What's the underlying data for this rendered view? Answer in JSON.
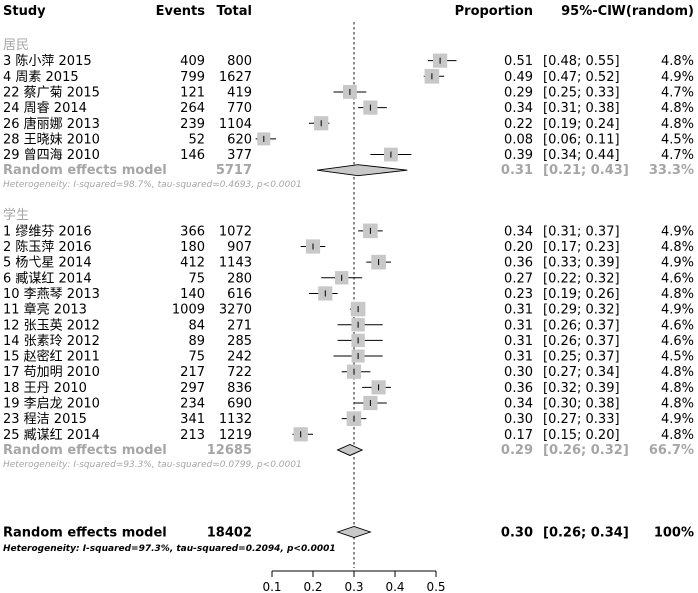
{
  "headers": {
    "study": "Study",
    "events": "Events",
    "total": "Total",
    "proportion": "Proportion",
    "ci": "95%-CI",
    "weight": "W(random)"
  },
  "chart_data": {
    "type": "forest",
    "xlim": [
      0.1,
      0.5
    ],
    "ticks": [
      "0.1",
      "0.2",
      "0.3",
      "0.4",
      "0.5"
    ],
    "reference_line": 0.3,
    "groups": [
      {
        "label": "居民",
        "studies": [
          {
            "study": "3 陈小萍 2015",
            "events": "409",
            "total": "800",
            "proportion": "0.51",
            "ci_text": "[0.48; 0.55]",
            "weight": "4.8%",
            "est": 0.51,
            "lo": 0.48,
            "hi": 0.55,
            "w": 4.8
          },
          {
            "study": "4 周素 2015",
            "events": "799",
            "total": "1627",
            "proportion": "0.49",
            "ci_text": "[0.47; 0.52]",
            "weight": "4.9%",
            "est": 0.49,
            "lo": 0.47,
            "hi": 0.52,
            "w": 4.9
          },
          {
            "study": "22 蔡广菊 2015",
            "events": "121",
            "total": "419",
            "proportion": "0.29",
            "ci_text": "[0.25; 0.33]",
            "weight": "4.7%",
            "est": 0.29,
            "lo": 0.25,
            "hi": 0.33,
            "w": 4.7
          },
          {
            "study": "24 周睿 2014",
            "events": "264",
            "total": "770",
            "proportion": "0.34",
            "ci_text": "[0.31; 0.38]",
            "weight": "4.8%",
            "est": 0.34,
            "lo": 0.31,
            "hi": 0.38,
            "w": 4.8
          },
          {
            "study": "26 唐丽娜 2013",
            "events": "239",
            "total": "1104",
            "proportion": "0.22",
            "ci_text": "[0.19; 0.24]",
            "weight": "4.8%",
            "est": 0.22,
            "lo": 0.19,
            "hi": 0.24,
            "w": 4.8
          },
          {
            "study": "28 王晓妹 2010",
            "events": "52",
            "total": "620",
            "proportion": "0.08",
            "ci_text": "[0.06; 0.11]",
            "weight": "4.5%",
            "est": 0.08,
            "lo": 0.06,
            "hi": 0.11,
            "w": 4.5
          },
          {
            "study": "29 曾四海 2010",
            "events": "146",
            "total": "377",
            "proportion": "0.39",
            "ci_text": "[0.34; 0.44]",
            "weight": "4.7%",
            "est": 0.39,
            "lo": 0.34,
            "hi": 0.44,
            "w": 4.7
          }
        ],
        "summary": {
          "label": "Random effects model",
          "total": "5717",
          "proportion": "0.31",
          "ci_text": "[0.21; 0.43]",
          "weight": "33.3%",
          "est": 0.31,
          "lo": 0.21,
          "hi": 0.43
        },
        "heterogeneity": "Heterogeneity: I-squared=98.7%, tau-squared=0.4693, p<0.0001"
      },
      {
        "label": "学生",
        "studies": [
          {
            "study": "1 缪维芬 2016",
            "events": "366",
            "total": "1072",
            "proportion": "0.34",
            "ci_text": "[0.31; 0.37]",
            "weight": "4.9%",
            "est": 0.34,
            "lo": 0.31,
            "hi": 0.37,
            "w": 4.9
          },
          {
            "study": "2 陈玉萍 2016",
            "events": "180",
            "total": "907",
            "proportion": "0.20",
            "ci_text": "[0.17; 0.23]",
            "weight": "4.8%",
            "est": 0.2,
            "lo": 0.17,
            "hi": 0.23,
            "w": 4.8
          },
          {
            "study": "5 杨弋星 2014",
            "events": "412",
            "total": "1143",
            "proportion": "0.36",
            "ci_text": "[0.33; 0.39]",
            "weight": "4.9%",
            "est": 0.36,
            "lo": 0.33,
            "hi": 0.39,
            "w": 4.9
          },
          {
            "study": "6 臧谋红 2014",
            "events": "75",
            "total": "280",
            "proportion": "0.27",
            "ci_text": "[0.22; 0.32]",
            "weight": "4.6%",
            "est": 0.27,
            "lo": 0.22,
            "hi": 0.32,
            "w": 4.6
          },
          {
            "study": "10 李燕琴 2013",
            "events": "140",
            "total": "616",
            "proportion": "0.23",
            "ci_text": "[0.19; 0.26]",
            "weight": "4.8%",
            "est": 0.23,
            "lo": 0.19,
            "hi": 0.26,
            "w": 4.8
          },
          {
            "study": "11 章亮 2013",
            "events": "1009",
            "total": "3270",
            "proportion": "0.31",
            "ci_text": "[0.29; 0.32]",
            "weight": "4.9%",
            "est": 0.31,
            "lo": 0.29,
            "hi": 0.32,
            "w": 4.9
          },
          {
            "study": "12 张玉英 2012",
            "events": "84",
            "total": "271",
            "proportion": "0.31",
            "ci_text": "[0.26; 0.37]",
            "weight": "4.6%",
            "est": 0.31,
            "lo": 0.26,
            "hi": 0.37,
            "w": 4.6
          },
          {
            "study": "14 张素玲 2012",
            "events": "89",
            "total": "285",
            "proportion": "0.31",
            "ci_text": "[0.26; 0.37]",
            "weight": "4.6%",
            "est": 0.31,
            "lo": 0.26,
            "hi": 0.37,
            "w": 4.6
          },
          {
            "study": "15 赵密红 2011",
            "events": "75",
            "total": "242",
            "proportion": "0.31",
            "ci_text": "[0.25; 0.37]",
            "weight": "4.5%",
            "est": 0.31,
            "lo": 0.25,
            "hi": 0.37,
            "w": 4.5
          },
          {
            "study": "17 苟加明 2010",
            "events": "217",
            "total": "722",
            "proportion": "0.30",
            "ci_text": "[0.27; 0.34]",
            "weight": "4.8%",
            "est": 0.3,
            "lo": 0.27,
            "hi": 0.34,
            "w": 4.8
          },
          {
            "study": "18 王丹 2010",
            "events": "297",
            "total": "836",
            "proportion": "0.36",
            "ci_text": "[0.32; 0.39]",
            "weight": "4.8%",
            "est": 0.36,
            "lo": 0.32,
            "hi": 0.39,
            "w": 4.8
          },
          {
            "study": "19 李启龙 2010",
            "events": "234",
            "total": "690",
            "proportion": "0.34",
            "ci_text": "[0.30; 0.38]",
            "weight": "4.8%",
            "est": 0.34,
            "lo": 0.3,
            "hi": 0.38,
            "w": 4.8
          },
          {
            "study": "23 程洁 2015",
            "events": "341",
            "total": "1132",
            "proportion": "0.30",
            "ci_text": "[0.27; 0.33]",
            "weight": "4.9%",
            "est": 0.3,
            "lo": 0.27,
            "hi": 0.33,
            "w": 4.9
          },
          {
            "study": "25 臧谋红 2014",
            "events": "213",
            "total": "1219",
            "proportion": "0.17",
            "ci_text": "[0.15; 0.20]",
            "weight": "4.8%",
            "est": 0.17,
            "lo": 0.15,
            "hi": 0.2,
            "w": 4.8
          }
        ],
        "summary": {
          "label": "Random effects model",
          "total": "12685",
          "proportion": "0.29",
          "ci_text": "[0.26; 0.32]",
          "weight": "66.7%",
          "est": 0.29,
          "lo": 0.26,
          "hi": 0.32
        },
        "heterogeneity": "Heterogeneity: I-squared=93.3%, tau-squared=0.0799, p<0.0001"
      }
    ],
    "overall": {
      "label": "Random effects model",
      "total": "18402",
      "proportion": "0.30",
      "ci_text": "[0.26; 0.34]",
      "weight": "100%",
      "est": 0.3,
      "lo": 0.26,
      "hi": 0.34,
      "heterogeneity": "Heterogeneity: I-squared=97.3%, tau-squared=0.2094, p<0.0001"
    },
    "colors": {
      "box": "#c8c8c8",
      "box_stroke": "#9a9a9a",
      "diamond": "#c8c8c8",
      "subgroup_text": "#a6a6a6",
      "line": "#000000",
      "grey_line": "#8c8c8c"
    }
  }
}
